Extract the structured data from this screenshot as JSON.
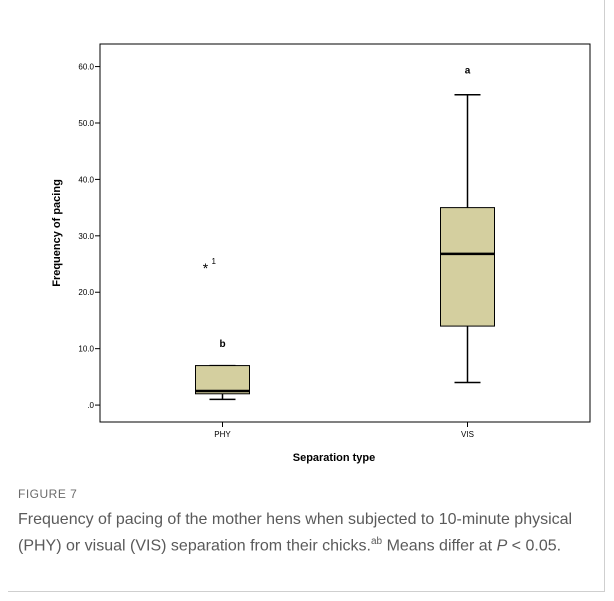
{
  "figure": {
    "label": "FIGURE 7",
    "caption_main": "Frequency of pacing of the mother hens when subjected to 10-minute physical (PHY) or visual (VIS) separation from their chicks.",
    "caption_sup": "ab",
    "caption_tail_pre": " Means differ at ",
    "caption_p": "P",
    "caption_tail_post": " < 0.05."
  },
  "chart_data": {
    "type": "box",
    "xlabel": "Separation type",
    "ylabel": "Frequency of pacing",
    "ylim": [
      -3,
      64
    ],
    "yticks": [
      {
        "value": 0,
        "label": ".0"
      },
      {
        "value": 10,
        "label": "10.0"
      },
      {
        "value": 20,
        "label": "20.0"
      },
      {
        "value": 30,
        "label": "30.0"
      },
      {
        "value": 40,
        "label": "40.0"
      },
      {
        "value": 50,
        "label": "50.0"
      },
      {
        "value": 60,
        "label": "60.0"
      }
    ],
    "categories": [
      "PHY",
      "VIS"
    ],
    "boxes": [
      {
        "category": "PHY",
        "min": 1,
        "q1": 2,
        "median": 2.5,
        "q3": 7,
        "max": 7,
        "outliers": [
          {
            "value": 24.5,
            "label": "1",
            "marker": "*"
          }
        ],
        "letter": "b",
        "letter_value": 11
      },
      {
        "category": "VIS",
        "min": 4,
        "q1": 14,
        "median": 26.8,
        "q3": 35,
        "max": 55,
        "outliers": [],
        "letter": "a",
        "letter_value": 59.5
      }
    ],
    "box_color": "#d4cf9f",
    "grid": false,
    "legend": "none"
  }
}
